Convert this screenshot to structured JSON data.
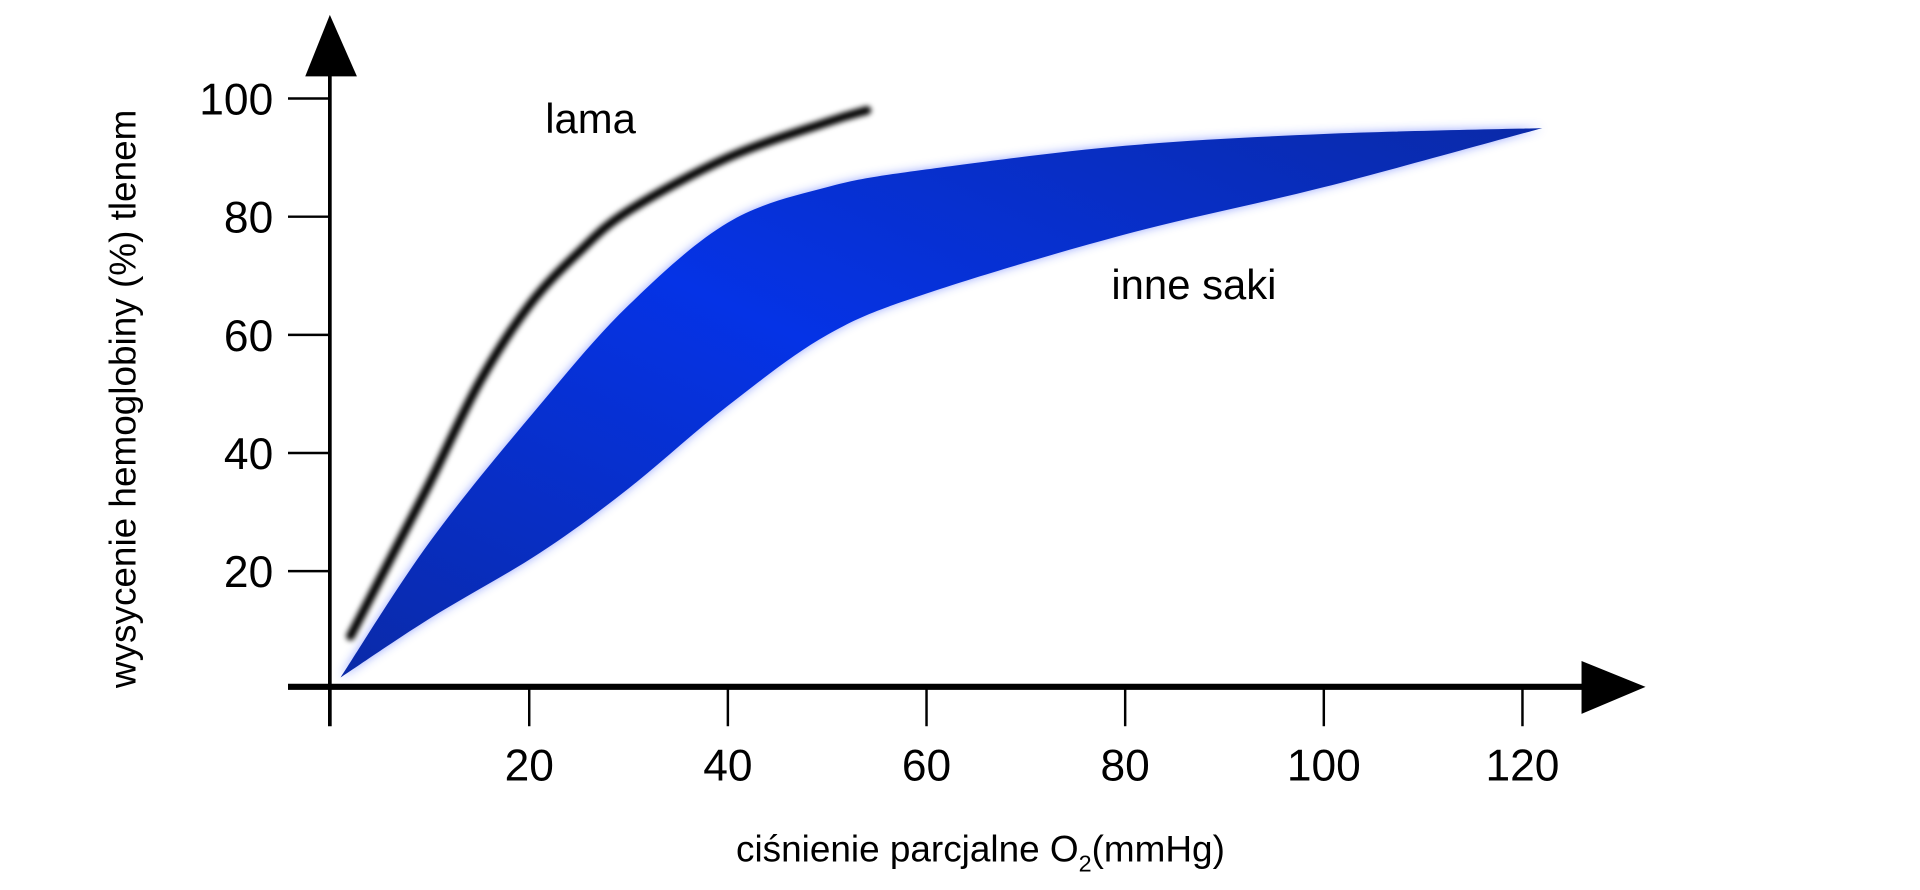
{
  "chart_data": {
    "type": "area",
    "xlabel": "ciśnienie parcjalne O",
    "xlabel_sub": "2",
    "xlabel_unit": "(mmHg)",
    "ylabel": "wysycenie hemoglobiny (%) tlenem",
    "xlim": [
      0,
      130
    ],
    "ylim": [
      0,
      100
    ],
    "x_ticks": [
      20,
      40,
      60,
      80,
      100,
      120
    ],
    "y_ticks": [
      20,
      40,
      60,
      80,
      100
    ],
    "grid": false,
    "series": [
      {
        "name": "lama",
        "kind": "line",
        "color": "#000000",
        "points": [
          [
            2,
            9
          ],
          [
            6,
            22
          ],
          [
            10,
            35
          ],
          [
            15,
            52
          ],
          [
            20,
            65
          ],
          [
            25,
            74
          ],
          [
            30,
            81
          ],
          [
            40,
            90
          ],
          [
            50,
            96
          ],
          [
            54,
            98
          ]
        ]
      },
      {
        "name": "inne saki",
        "kind": "band",
        "color": "#0a2fd0",
        "upper": [
          [
            1,
            2
          ],
          [
            10,
            25
          ],
          [
            21,
            48
          ],
          [
            30,
            65
          ],
          [
            40,
            79
          ],
          [
            50,
            85
          ],
          [
            60,
            88
          ],
          [
            80,
            92
          ],
          [
            100,
            94
          ],
          [
            122,
            95
          ]
        ],
        "lower": [
          [
            1,
            2
          ],
          [
            10,
            12
          ],
          [
            21,
            23
          ],
          [
            30,
            34
          ],
          [
            40,
            48
          ],
          [
            50,
            60
          ],
          [
            60,
            67
          ],
          [
            80,
            77
          ],
          [
            100,
            85
          ],
          [
            122,
            95
          ]
        ]
      }
    ]
  }
}
